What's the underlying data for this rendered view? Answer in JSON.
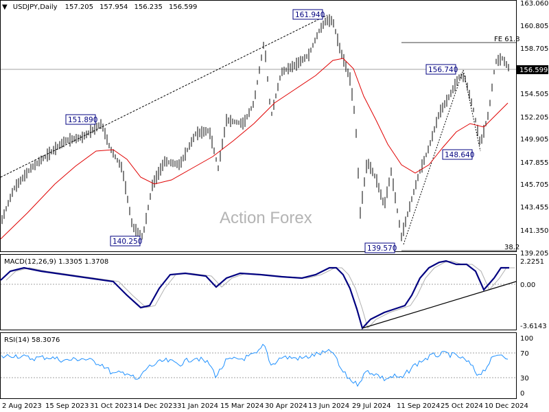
{
  "chart_data": [
    {
      "type": "candlestick",
      "symbol_label": "USDJPY,Daily",
      "ohlc": [
        "157.205",
        "157.954",
        "156.235",
        "156.599"
      ],
      "current_price_label": "156.599",
      "watermark": "Action Forex",
      "y_ticks": [
        "163.060",
        "160.805",
        "158.705",
        "156.599",
        "154.505",
        "152.205",
        "149.905",
        "147.855",
        "145.705",
        "143.455",
        "141.350",
        "139.205"
      ],
      "x_ticks": [
        "2 Aug 2023",
        "15 Sep 2023",
        "31 Oct 2023",
        "14 Dec 2023",
        "31 Jan 2024",
        "15 Mar 2024",
        "30 Apr 2024",
        "13 Jun 2024",
        "29 Jul 2024",
        "11 Sep 2024",
        "25 Oct 2024",
        "10 Dec 2024"
      ],
      "annotations": [
        {
          "label": "161.940"
        },
        {
          "label": "151.890"
        },
        {
          "label": "140.250"
        },
        {
          "label": "139.570"
        },
        {
          "label": "156.740"
        },
        {
          "label": "148.640"
        },
        {
          "label": "FE 61.8"
        },
        {
          "label": "38.2"
        }
      ],
      "colors": {
        "price": "#000000",
        "ma": "#e00000",
        "annotation": "#000080"
      }
    },
    {
      "type": "line",
      "title": "MACD(12,26,9) 1.3305 1.3708",
      "y_ticks": [
        "2.2251",
        "0.00",
        "-3.6143"
      ],
      "colors": {
        "macd": "#000080",
        "signal": "#b0b0b0",
        "trendline": "#000000"
      }
    },
    {
      "type": "line",
      "title": "RSI(14) 58.3076",
      "y_ticks": [
        "100",
        "70",
        "30",
        "0"
      ],
      "colors": {
        "rsi": "#1e90ff"
      }
    }
  ]
}
